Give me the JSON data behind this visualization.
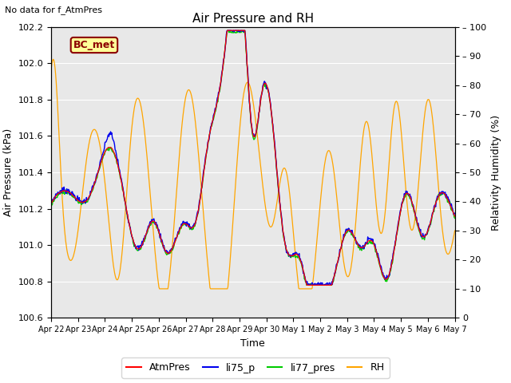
{
  "title": "Air Pressure and RH",
  "top_left_text": "No data for f_AtmPres",
  "box_label": "BC_met",
  "ylabel_left": "Air Pressure (kPa)",
  "ylabel_right": "Relativity Humidity (%)",
  "xlabel": "Time",
  "ylim_left": [
    100.6,
    102.2
  ],
  "ylim_right": [
    0,
    100
  ],
  "yticks_left": [
    100.6,
    100.8,
    101.0,
    101.2,
    101.4,
    101.6,
    101.8,
    102.0,
    102.2
  ],
  "yticks_right": [
    0,
    10,
    20,
    30,
    40,
    50,
    60,
    70,
    80,
    90,
    100
  ],
  "xtick_labels": [
    "Apr 22",
    "Apr 23",
    "Apr 24",
    "Apr 25",
    "Apr 26",
    "Apr 27",
    "Apr 28",
    "Apr 29",
    "Apr 30",
    "May 1",
    "May 2",
    "May 3",
    "May 4",
    "May 5",
    "May 6",
    "May 7"
  ],
  "colors": {
    "AtmPres": "#FF0000",
    "li75_p": "#0000EE",
    "li77_pres": "#00CC00",
    "RH": "#FFA500",
    "background": "#E8E8E8",
    "grid": "#FFFFFF"
  },
  "n_points": 720
}
